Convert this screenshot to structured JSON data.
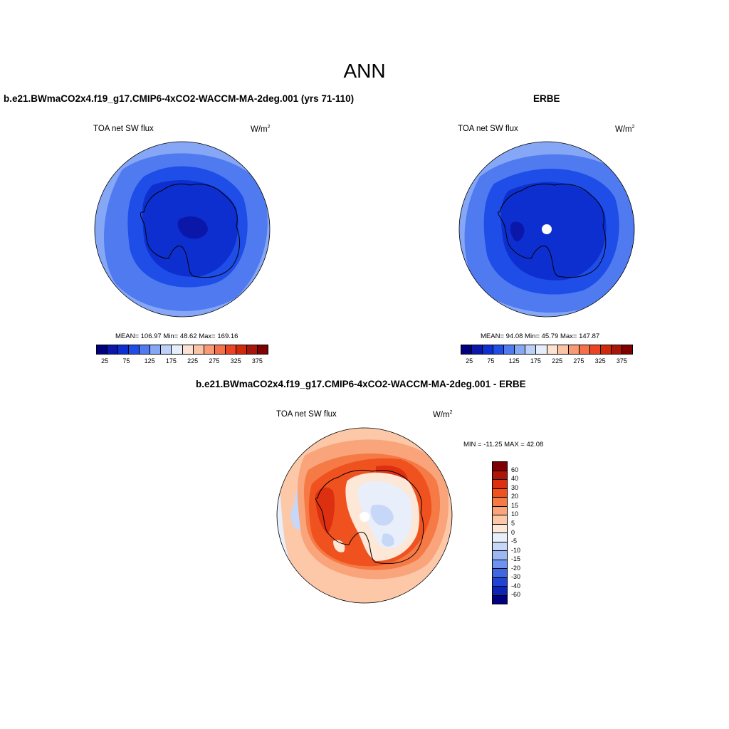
{
  "main_title": "ANN",
  "panels": {
    "left": {
      "title": "b.e21.BWmaCO2x4.f19_g17.CMIP6-4xCO2-WACCM-MA-2deg.001 (yrs 71-110)",
      "variable": "TOA net SW flux",
      "units_base": "W/m",
      "units_exp": "2",
      "stats": "MEAN= 106.97  Min=  48.62  Max= 169.16"
    },
    "right": {
      "title": "ERBE",
      "variable": "TOA net SW flux",
      "units_base": "W/m",
      "units_exp": "2",
      "stats": "MEAN=  94.08  Min=  45.79  Max= 147.87"
    },
    "diff": {
      "title": "b.e21.BWmaCO2x4.f19_g17.CMIP6-4xCO2-WACCM-MA-2deg.001 - ERBE",
      "variable": "TOA net SW flux",
      "units_base": "W/m",
      "units_exp": "2",
      "stats": "MIN = -11.25 MAX =  42.08"
    }
  },
  "colorbar_abs": {
    "colors": [
      "#00007f",
      "#0b17a8",
      "#0d2fd0",
      "#1e4de8",
      "#4f7af0",
      "#86a7f5",
      "#bcd0fa",
      "#e6eefc",
      "#fde2d2",
      "#fbc4a6",
      "#f89a74",
      "#f4714a",
      "#ec4422",
      "#d02a0c",
      "#a8150a",
      "#7e0000"
    ],
    "ticks": [
      "25",
      "75",
      "125",
      "175",
      "225",
      "275",
      "325",
      "375"
    ]
  },
  "colorbar_diff": {
    "colors": [
      "#7e0000",
      "#b01508",
      "#dd3010",
      "#f0521f",
      "#f57a45",
      "#f9a47a",
      "#fcc8a8",
      "#fde7d6",
      "#e8effb",
      "#c6d7f8",
      "#9bb8f5",
      "#6c93ef",
      "#3f66e3",
      "#1f44d6",
      "#0c25b8",
      "#000080"
    ],
    "ticks": [
      "60",
      "40",
      "30",
      "20",
      "15",
      "10",
      "5",
      "0",
      "-5",
      "-10",
      "-15",
      "-20",
      "-30",
      "-40",
      "-60"
    ]
  }
}
